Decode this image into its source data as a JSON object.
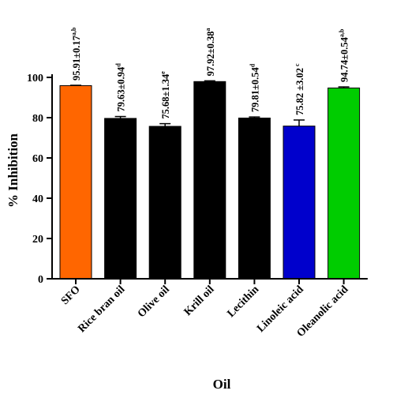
{
  "chart_data": {
    "type": "bar",
    "categories": [
      "SFO",
      "Rice bran oil",
      "Olive oil",
      "Krill oil",
      "Lecithin",
      "Linoleic acid",
      "Oleanolic acid"
    ],
    "values": [
      95.91,
      79.63,
      75.68,
      97.92,
      79.81,
      75.82,
      94.74
    ],
    "errors": [
      0.17,
      0.94,
      1.34,
      0.38,
      0.54,
      3.02,
      0.54
    ],
    "data_labels": [
      "95.91±0.17",
      "79.63±0.94",
      "75.68±1.34",
      "97.92±0.38",
      "79.81±0.54",
      "75.82 ±3.02",
      "94.74±0.54"
    ],
    "significance_letters": [
      "a,b",
      "d",
      "e",
      "a",
      "d",
      " c",
      "a,b"
    ],
    "bar_colors": [
      "#ff6600",
      "#000000",
      "#000000",
      "#000000",
      "#000000",
      "#0000cc",
      "#00cc00"
    ],
    "xlabel": "Oil",
    "ylabel": "% Inhibition",
    "ylim": [
      0,
      100
    ],
    "yticks": [
      "0",
      "20",
      "40",
      "60",
      "80",
      "100"
    ],
    "grid": false,
    "legend": "none"
  }
}
